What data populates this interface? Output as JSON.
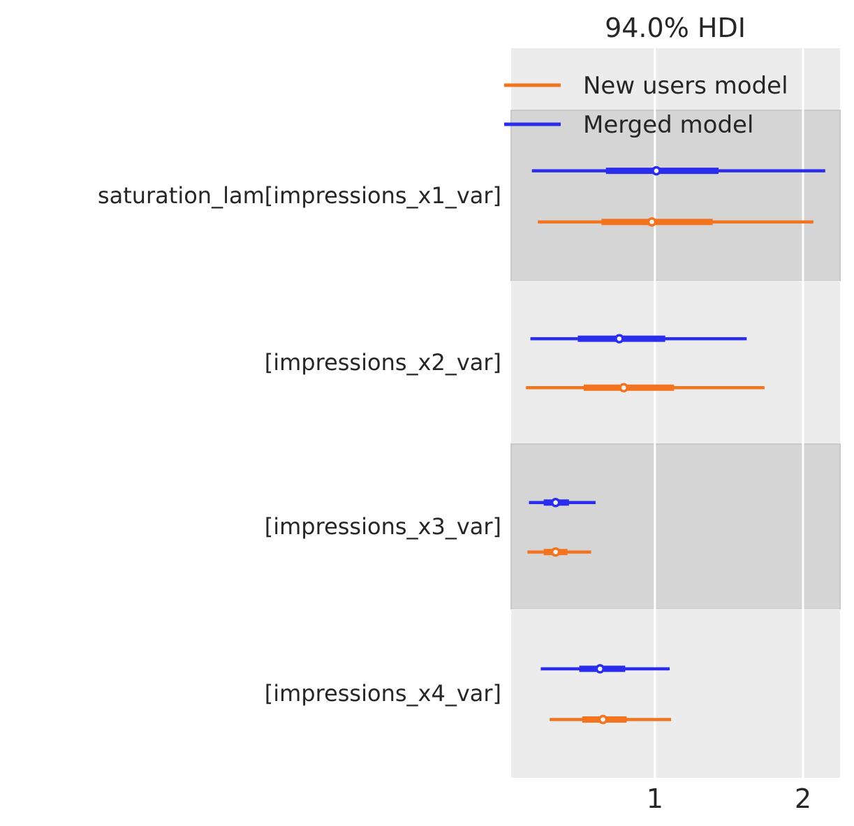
{
  "title": "94.0% HDI",
  "colors": {
    "blue": "#2a2eec",
    "orange": "#f4731e",
    "band_light": "#ececec",
    "band_dark": "#d5d5d5",
    "band_dark_edge": "#c9c9c9",
    "grid": "#ffffff",
    "text": "#262626",
    "marker_fill": "#f6f6f6",
    "background": "#ffffff"
  },
  "legend": {
    "entries": [
      {
        "label": "New users model",
        "color_key": "orange"
      },
      {
        "label": "Merged model",
        "color_key": "blue"
      }
    ]
  },
  "chart_data": {
    "type": "forest",
    "title": "94.0% HDI",
    "hdi_prob": 0.94,
    "xlabel": "",
    "x_ticks": [
      1,
      2
    ],
    "xlim": [
      0.03,
      2.25
    ],
    "grid": "vertical white gridlines at x ticks",
    "legend_position": "upper right",
    "models": [
      {
        "name": "New users model",
        "color_key": "orange"
      },
      {
        "name": "Merged model",
        "color_key": "blue"
      }
    ],
    "row_series_order": [
      "Merged model",
      "New users model"
    ],
    "rows": [
      {
        "label": "saturation_lam[impressions_x1_var]",
        "estimates": {
          "Merged model": {
            "hdi_lo": 0.17,
            "q_lo": 0.67,
            "median": 1.01,
            "q_hi": 1.43,
            "hdi_hi": 2.15
          },
          "New users model": {
            "hdi_lo": 0.21,
            "q_lo": 0.64,
            "median": 0.98,
            "q_hi": 1.39,
            "hdi_hi": 2.07
          }
        }
      },
      {
        "label": "[impressions_x2_var]",
        "estimates": {
          "Merged model": {
            "hdi_lo": 0.16,
            "q_lo": 0.48,
            "median": 0.76,
            "q_hi": 1.07,
            "hdi_hi": 1.62
          },
          "New users model": {
            "hdi_lo": 0.13,
            "q_lo": 0.52,
            "median": 0.79,
            "q_hi": 1.13,
            "hdi_hi": 1.74
          }
        }
      },
      {
        "label": "[impressions_x3_var]",
        "estimates": {
          "Merged model": {
            "hdi_lo": 0.15,
            "q_lo": 0.25,
            "median": 0.33,
            "q_hi": 0.42,
            "hdi_hi": 0.6
          },
          "New users model": {
            "hdi_lo": 0.14,
            "q_lo": 0.25,
            "median": 0.33,
            "q_hi": 0.41,
            "hdi_hi": 0.57
          }
        }
      },
      {
        "label": "[impressions_x4_var]",
        "estimates": {
          "Merged model": {
            "hdi_lo": 0.23,
            "q_lo": 0.49,
            "median": 0.63,
            "q_hi": 0.8,
            "hdi_hi": 1.1
          },
          "New users model": {
            "hdi_lo": 0.29,
            "q_lo": 0.51,
            "median": 0.65,
            "q_hi": 0.81,
            "hdi_hi": 1.11
          }
        }
      }
    ]
  }
}
